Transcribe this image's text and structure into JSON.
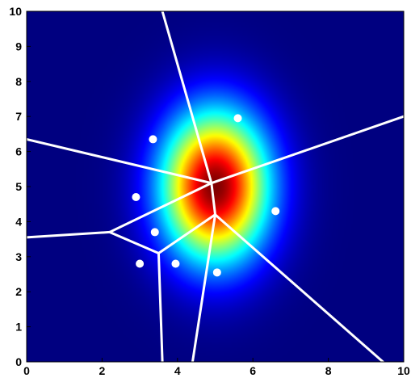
{
  "chart_data": {
    "type": "scatter",
    "title": "",
    "xlabel": "",
    "ylabel": "",
    "xlim": [
      0,
      10
    ],
    "ylim": [
      0,
      10
    ],
    "x_ticks": [
      0,
      2,
      4,
      6,
      8,
      10
    ],
    "y_ticks": [
      0,
      1,
      2,
      3,
      4,
      5,
      6,
      7,
      8,
      9,
      10
    ],
    "x_tick_labels": [
      "0",
      "2",
      "4",
      "6",
      "8",
      "10"
    ],
    "y_tick_labels": [
      "0",
      "1",
      "2",
      "3",
      "4",
      "5",
      "6",
      "7",
      "8",
      "9",
      "10"
    ],
    "grid": false,
    "background_colormap": "jet",
    "gaussian_field": {
      "center": [
        5.0,
        5.0
      ],
      "sigma_x": 1.0,
      "sigma_y": 1.5
    },
    "points": [
      {
        "x": 5.6,
        "y": 6.95
      },
      {
        "x": 3.35,
        "y": 6.35
      },
      {
        "x": 2.9,
        "y": 4.7
      },
      {
        "x": 6.6,
        "y": 4.3
      },
      {
        "x": 3.4,
        "y": 3.7
      },
      {
        "x": 3.0,
        "y": 2.8
      },
      {
        "x": 3.95,
        "y": 2.8
      },
      {
        "x": 5.05,
        "y": 2.55
      }
    ],
    "voronoi_vertices": [
      {
        "x": 4.9,
        "y": 5.1
      },
      {
        "x": 5.0,
        "y": 4.2
      },
      {
        "x": 3.5,
        "y": 3.1
      },
      {
        "x": 2.2,
        "y": 3.7
      }
    ],
    "voronoi_edges": [
      [
        [
          4.9,
          5.1
        ],
        [
          3.6,
          10.0
        ]
      ],
      [
        [
          4.9,
          5.1
        ],
        [
          10.0,
          7.0
        ]
      ],
      [
        [
          4.9,
          5.1
        ],
        [
          0.0,
          6.35
        ]
      ],
      [
        [
          4.9,
          5.1
        ],
        [
          5.0,
          4.2
        ]
      ],
      [
        [
          4.9,
          5.1
        ],
        [
          2.2,
          3.7
        ]
      ],
      [
        [
          5.0,
          4.2
        ],
        [
          3.5,
          3.1
        ]
      ],
      [
        [
          5.0,
          4.2
        ],
        [
          4.4,
          0.0
        ]
      ],
      [
        [
          5.0,
          4.2
        ],
        [
          9.45,
          0.0
        ]
      ],
      [
        [
          3.5,
          3.1
        ],
        [
          2.2,
          3.7
        ]
      ],
      [
        [
          3.5,
          3.1
        ],
        [
          3.6,
          0.0
        ]
      ],
      [
        [
          2.2,
          3.7
        ],
        [
          0.0,
          3.55
        ]
      ]
    ],
    "colors": {
      "background": "#00008f",
      "points": "#ffffff",
      "edges": "#ffffff",
      "axis": "#000000"
    }
  }
}
